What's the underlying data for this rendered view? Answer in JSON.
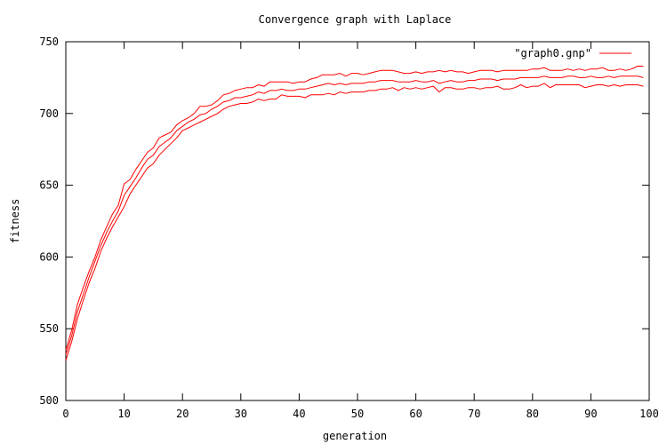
{
  "chart_data": {
    "type": "line",
    "title": "Convergence graph with Laplace",
    "xlabel": "generation",
    "ylabel": "fitness",
    "xlim": [
      0,
      100
    ],
    "ylim": [
      500,
      750
    ],
    "xticks": [
      "0",
      "10",
      "20",
      "30",
      "40",
      "50",
      "60",
      "70",
      "80",
      "90",
      "100"
    ],
    "yticks": [
      "500",
      "550",
      "600",
      "650",
      "700",
      "750"
    ],
    "grid": false,
    "legend_position": "top-right",
    "legend_label": "\"graph0.gnp\"",
    "series_color": "#ff0000",
    "series": [
      {
        "x": [
          0,
          1,
          2,
          3,
          4,
          5,
          6,
          7,
          8,
          9,
          10,
          11,
          12,
          13,
          14,
          15,
          16,
          17,
          18,
          19,
          20,
          21,
          22,
          23,
          24,
          25,
          26,
          27,
          28,
          29,
          30,
          31,
          32,
          33,
          34,
          35,
          36,
          37,
          38,
          39,
          40,
          41,
          42,
          43,
          44,
          45,
          46,
          47,
          48,
          49,
          50,
          51,
          52,
          53,
          54,
          55,
          56,
          57,
          58,
          59,
          60,
          61,
          62,
          63,
          64,
          65,
          66,
          67,
          68,
          69,
          70,
          71,
          72,
          73,
          74,
          75,
          76,
          77,
          78,
          79,
          80,
          81,
          82,
          83,
          84,
          85,
          86,
          87,
          88,
          89,
          90,
          91,
          92,
          93,
          94,
          95,
          96,
          97,
          98,
          99
        ],
        "values": [
          535,
          549,
          567,
          579,
          590,
          600,
          612,
          621,
          630,
          636,
          651,
          654,
          661,
          667,
          673,
          676,
          683,
          685,
          687,
          692,
          695,
          697,
          700,
          705,
          705,
          706,
          709,
          713,
          714,
          716,
          717,
          718,
          718,
          720,
          719,
          722,
          722,
          722,
          722,
          721,
          722,
          722,
          724,
          725,
          727,
          727,
          727,
          728,
          726,
          728,
          728,
          727,
          728,
          729,
          730,
          730,
          730,
          729,
          728,
          728,
          729,
          728,
          729,
          729,
          730,
          729,
          730,
          729,
          729,
          728,
          729,
          730,
          730,
          730,
          729,
          730,
          730,
          730,
          730,
          730,
          731,
          731,
          732,
          730,
          730,
          730,
          731,
          730,
          731,
          730,
          731,
          731,
          732,
          730,
          730,
          731,
          730,
          731,
          733,
          733
        ]
      },
      {
        "x": [
          0,
          1,
          2,
          3,
          4,
          5,
          6,
          7,
          8,
          9,
          10,
          11,
          12,
          13,
          14,
          15,
          16,
          17,
          18,
          19,
          20,
          21,
          22,
          23,
          24,
          25,
          26,
          27,
          28,
          29,
          30,
          31,
          32,
          33,
          34,
          35,
          36,
          37,
          38,
          39,
          40,
          41,
          42,
          43,
          44,
          45,
          46,
          47,
          48,
          49,
          50,
          51,
          52,
          53,
          54,
          55,
          56,
          57,
          58,
          59,
          60,
          61,
          62,
          63,
          64,
          65,
          66,
          67,
          68,
          69,
          70,
          71,
          72,
          73,
          74,
          75,
          76,
          77,
          78,
          79,
          80,
          81,
          82,
          83,
          84,
          85,
          86,
          87,
          88,
          89,
          90,
          91,
          92,
          93,
          94,
          95,
          96,
          97,
          98,
          99
        ],
        "values": [
          532,
          545,
          562,
          574,
          586,
          597,
          608,
          617,
          625,
          632,
          643,
          649,
          655,
          662,
          668,
          671,
          677,
          680,
          683,
          688,
          691,
          694,
          696,
          699,
          700,
          703,
          705,
          708,
          709,
          711,
          711,
          712,
          713,
          715,
          714,
          716,
          716,
          717,
          716,
          716,
          717,
          717,
          718,
          719,
          720,
          721,
          720,
          721,
          720,
          721,
          721,
          721,
          722,
          722,
          723,
          723,
          723,
          722,
          722,
          722,
          723,
          722,
          722,
          723,
          721,
          722,
          723,
          722,
          722,
          723,
          723,
          724,
          724,
          724,
          723,
          724,
          724,
          724,
          725,
          725,
          725,
          725,
          726,
          725,
          725,
          725,
          726,
          726,
          725,
          725,
          726,
          725,
          725,
          726,
          725,
          726,
          726,
          726,
          726,
          725
        ]
      },
      {
        "x": [
          0,
          1,
          2,
          3,
          4,
          5,
          6,
          7,
          8,
          9,
          10,
          11,
          12,
          13,
          14,
          15,
          16,
          17,
          18,
          19,
          20,
          21,
          22,
          23,
          24,
          25,
          26,
          27,
          28,
          29,
          30,
          31,
          32,
          33,
          34,
          35,
          36,
          37,
          38,
          39,
          40,
          41,
          42,
          43,
          44,
          45,
          46,
          47,
          48,
          49,
          50,
          51,
          52,
          53,
          54,
          55,
          56,
          57,
          58,
          59,
          60,
          61,
          62,
          63,
          64,
          65,
          66,
          67,
          68,
          69,
          70,
          71,
          72,
          73,
          74,
          75,
          76,
          77,
          78,
          79,
          80,
          81,
          82,
          83,
          84,
          85,
          86,
          87,
          88,
          89,
          90,
          91,
          92,
          93,
          94,
          95,
          96,
          97,
          98,
          99
        ],
        "values": [
          528,
          541,
          557,
          570,
          582,
          592,
          604,
          613,
          621,
          628,
          635,
          644,
          650,
          656,
          662,
          665,
          671,
          675,
          679,
          683,
          688,
          690,
          692,
          694,
          696,
          698,
          700,
          703,
          705,
          706,
          707,
          707,
          708,
          710,
          709,
          710,
          710,
          713,
          712,
          712,
          712,
          711,
          713,
          713,
          713,
          714,
          713,
          715,
          714,
          715,
          715,
          715,
          716,
          716,
          717,
          717,
          718,
          716,
          718,
          717,
          718,
          717,
          718,
          719,
          715,
          718,
          718,
          717,
          717,
          718,
          718,
          717,
          718,
          718,
          719,
          717,
          717,
          718,
          720,
          718,
          719,
          719,
          721,
          718,
          720,
          720,
          720,
          720,
          720,
          718,
          719,
          720,
          720,
          719,
          720,
          719,
          720,
          720,
          720,
          719
        ]
      }
    ]
  }
}
